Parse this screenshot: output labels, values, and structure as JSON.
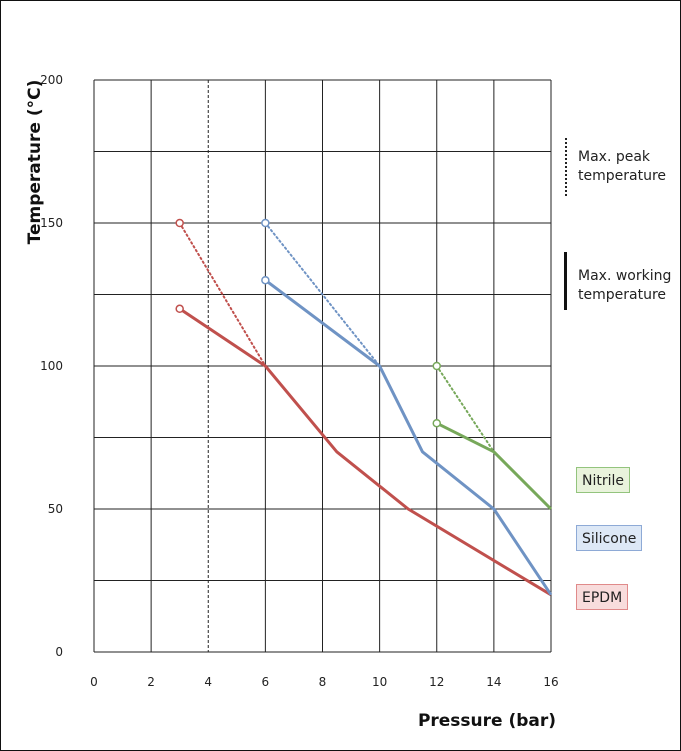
{
  "chart_data": {
    "type": "line",
    "title": "",
    "xlabel": "Pressure (bar)",
    "ylabel": "Temperature (°C)",
    "xlim": [
      0,
      16
    ],
    "ylim": [
      0,
      200
    ],
    "xticks": [
      0,
      2,
      4,
      6,
      8,
      10,
      12,
      14,
      16
    ],
    "yticks": [
      0,
      50,
      100,
      150,
      200
    ],
    "grid": true,
    "series": [
      {
        "name": "EPDM",
        "color": "#c0504d",
        "working": [
          [
            3,
            120
          ],
          [
            6,
            100
          ],
          [
            8.5,
            70
          ],
          [
            11,
            50
          ],
          [
            16,
            20
          ]
        ],
        "peak": [
          [
            3,
            150
          ],
          [
            6,
            100
          ]
        ]
      },
      {
        "name": "Silicone",
        "color": "#6f93c4",
        "working": [
          [
            6,
            130
          ],
          [
            10,
            100
          ],
          [
            11.5,
            70
          ],
          [
            14,
            50
          ],
          [
            16,
            20
          ]
        ],
        "peak": [
          [
            6,
            150
          ],
          [
            10,
            100
          ]
        ]
      },
      {
        "name": "Nitrile",
        "color": "#77a85a",
        "working": [
          [
            12,
            80
          ],
          [
            14,
            70
          ],
          [
            16,
            50
          ]
        ],
        "peak": [
          [
            12,
            100
          ],
          [
            14,
            70
          ]
        ]
      }
    ],
    "legend": [
      {
        "label": "Nitrile",
        "bg": "#e9f3dc",
        "border": "#93c47d"
      },
      {
        "label": "Silicone",
        "bg": "#dde8f6",
        "border": "#8eaad6"
      },
      {
        "label": "EPDM",
        "bg": "#f8dcdc",
        "border": "#e08a8a"
      }
    ],
    "annotations": {
      "peak_label": "Max. peak\ntemperature",
      "working_label": "Max. working\ntemperature"
    }
  }
}
